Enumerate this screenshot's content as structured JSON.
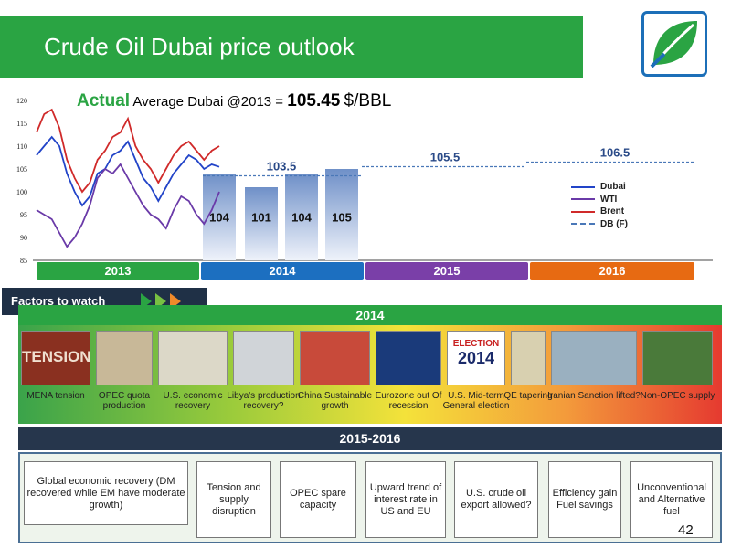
{
  "title": "Crude Oil Dubai price outlook",
  "actual": {
    "label": "Actual",
    "text": "Average Dubai @2013 =",
    "value": "105.45",
    "unit": "$/BBL"
  },
  "chart_data": {
    "type": "line",
    "ylim": [
      85,
      120
    ],
    "yticks": [
      "120",
      "115",
      "110",
      "105",
      "100",
      "95",
      "90",
      "85"
    ],
    "series": [
      {
        "name": "Dubai",
        "color": "#2244c8",
        "style": "solid",
        "values": [
          108,
          110,
          112,
          110,
          104,
          100,
          97,
          99,
          104,
          105,
          108,
          109,
          111,
          107,
          103,
          101,
          98,
          101,
          104,
          106,
          108,
          107,
          105,
          106,
          105.45
        ]
      },
      {
        "name": "WTI",
        "color": "#6a3aa8",
        "style": "solid",
        "values": [
          96,
          95,
          94,
          91,
          88,
          90,
          93,
          97,
          103,
          105,
          104,
          106,
          103,
          100,
          97,
          95,
          94,
          92,
          96,
          99,
          98,
          95,
          93,
          96,
          100
        ]
      },
      {
        "name": "Brent",
        "color": "#d02a2a",
        "style": "solid",
        "values": [
          113,
          117,
          118,
          114,
          107,
          103,
          100,
          102,
          107,
          109,
          112,
          113,
          116,
          110,
          107,
          105,
          102,
          105,
          108,
          110,
          111,
          109,
          107,
          109,
          110
        ]
      },
      {
        "name": "DB (F)",
        "color": "#4a78b8",
        "style": "dashed"
      }
    ],
    "forecast_bars": {
      "labels": [
        "104",
        "101",
        "104",
        "105"
      ],
      "values": [
        104,
        101,
        104,
        105
      ]
    },
    "forecast_lines": [
      {
        "label": "103.5",
        "value": 103.5
      },
      {
        "label": "105.5",
        "value": 105.5
      },
      {
        "label": "106.5",
        "value": 106.5
      }
    ]
  },
  "years": [
    {
      "label": "2013",
      "color": "#2aa443"
    },
    {
      "label": "2014",
      "color": "#1c6fc0"
    },
    {
      "label": "2015",
      "color": "#7a3fa8"
    },
    {
      "label": "2016",
      "color": "#e76a12"
    }
  ],
  "factors_title": "Factors to watch",
  "band_2014": "2014",
  "factors_2014": [
    {
      "label": "MENA tension",
      "image_text": "TENSION"
    },
    {
      "label": "OPEC quota production"
    },
    {
      "label": "U.S. economic recovery"
    },
    {
      "label": "Libya's production recovery?"
    },
    {
      "label": "China Sustainable growth"
    },
    {
      "label": "Eurozone out Of recession"
    },
    {
      "label": "U.S. Mid-term General election",
      "image_text": "ELECTION",
      "image_year": "2014"
    },
    {
      "label": "QE tapering"
    },
    {
      "label": "Iranian Sanction lifted?"
    },
    {
      "label": "Non-OPEC supply"
    }
  ],
  "band_2015": "2015-2016",
  "factors_2015": [
    "Global economic recovery (DM recovered while EM have moderate growth)",
    "Tension and supply disruption",
    "OPEC spare capacity",
    "Upward trend of interest rate in US and EU",
    "U.S. crude oil export allowed?",
    "Efficiency gain Fuel savings",
    "Unconventional and Alternative fuel"
  ],
  "page_number": "42"
}
